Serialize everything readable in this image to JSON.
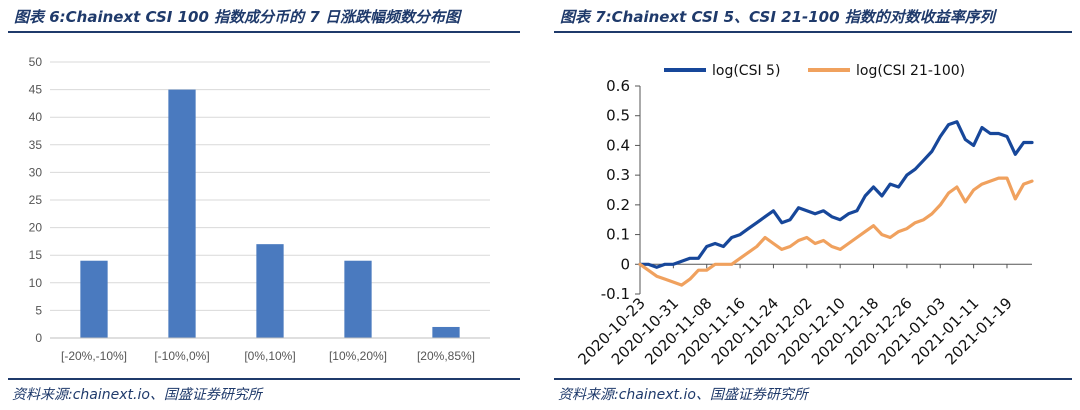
{
  "left_panel": {
    "title": "图表 6:Chainext CSI 100 指数成分币的 7 日涨跌幅频数分布图",
    "source": "资料来源:chainext.io、国盛证券研究所"
  },
  "right_panel": {
    "title": "图表 7:Chainext CSI 5、CSI 21-100 指数的对数收益率序列",
    "source": "资料来源:chainext.io、国盛证券研究所"
  },
  "chart_data": [
    {
      "type": "bar",
      "categories": [
        "[-20%,-10%]",
        "[-10%,0%]",
        "[0%,10%]",
        "[10%,20%]",
        "[20%,85%]"
      ],
      "values": [
        14,
        45,
        17,
        14,
        2
      ],
      "ylim": [
        0,
        50
      ],
      "yticks": [
        "0",
        "5",
        "10",
        "15",
        "20",
        "25",
        "30",
        "35",
        "40",
        "45",
        "50"
      ],
      "grid": true,
      "bar_color": "#4a7abf"
    },
    {
      "type": "line",
      "legend_position": "top",
      "ylim": [
        -0.1,
        0.6
      ],
      "yticks": [
        "-0.1",
        "0",
        "0.1",
        "0.2",
        "0.3",
        "0.4",
        "0.5",
        "0.6"
      ],
      "xticks": [
        "2020-10-23",
        "2020-10-31",
        "2020-11-08",
        "2020-11-16",
        "2020-11-24",
        "2020-12-02",
        "2020-12-10",
        "2020-12-18",
        "2020-12-26",
        "2021-01-03",
        "2021-01-11",
        "2021-01-19"
      ],
      "xrange": [
        "2020-10-23",
        "2021-01-25"
      ],
      "series": [
        {
          "name": "log(CSI 5)",
          "color": "#17479a",
          "points": [
            [
              "2020-10-23",
              0.0
            ],
            [
              "2020-10-25",
              0.0
            ],
            [
              "2020-10-27",
              -0.01
            ],
            [
              "2020-10-29",
              0.0
            ],
            [
              "2020-10-31",
              0.0
            ],
            [
              "2020-11-02",
              0.01
            ],
            [
              "2020-11-04",
              0.02
            ],
            [
              "2020-11-06",
              0.02
            ],
            [
              "2020-11-08",
              0.06
            ],
            [
              "2020-11-10",
              0.07
            ],
            [
              "2020-11-12",
              0.06
            ],
            [
              "2020-11-14",
              0.09
            ],
            [
              "2020-11-16",
              0.1
            ],
            [
              "2020-11-18",
              0.12
            ],
            [
              "2020-11-20",
              0.14
            ],
            [
              "2020-11-22",
              0.16
            ],
            [
              "2020-11-24",
              0.18
            ],
            [
              "2020-11-26",
              0.14
            ],
            [
              "2020-11-28",
              0.15
            ],
            [
              "2020-11-30",
              0.19
            ],
            [
              "2020-12-02",
              0.18
            ],
            [
              "2020-12-04",
              0.17
            ],
            [
              "2020-12-06",
              0.18
            ],
            [
              "2020-12-08",
              0.16
            ],
            [
              "2020-12-10",
              0.15
            ],
            [
              "2020-12-12",
              0.17
            ],
            [
              "2020-12-14",
              0.18
            ],
            [
              "2020-12-16",
              0.23
            ],
            [
              "2020-12-18",
              0.26
            ],
            [
              "2020-12-20",
              0.23
            ],
            [
              "2020-12-22",
              0.27
            ],
            [
              "2020-12-24",
              0.26
            ],
            [
              "2020-12-26",
              0.3
            ],
            [
              "2020-12-28",
              0.32
            ],
            [
              "2020-12-30",
              0.35
            ],
            [
              "2021-01-01",
              0.38
            ],
            [
              "2021-01-03",
              0.43
            ],
            [
              "2021-01-05",
              0.47
            ],
            [
              "2021-01-07",
              0.48
            ],
            [
              "2021-01-09",
              0.42
            ],
            [
              "2021-01-11",
              0.4
            ],
            [
              "2021-01-13",
              0.46
            ],
            [
              "2021-01-15",
              0.44
            ],
            [
              "2021-01-17",
              0.44
            ],
            [
              "2021-01-19",
              0.43
            ],
            [
              "2021-01-21",
              0.37
            ],
            [
              "2021-01-23",
              0.41
            ],
            [
              "2021-01-25",
              0.41
            ]
          ]
        },
        {
          "name": "log(CSI 21-100)",
          "color": "#f0a15e",
          "points": [
            [
              "2020-10-23",
              0.0
            ],
            [
              "2020-10-25",
              -0.02
            ],
            [
              "2020-10-27",
              -0.04
            ],
            [
              "2020-10-29",
              -0.05
            ],
            [
              "2020-10-31",
              -0.06
            ],
            [
              "2020-11-02",
              -0.07
            ],
            [
              "2020-11-04",
              -0.05
            ],
            [
              "2020-11-06",
              -0.02
            ],
            [
              "2020-11-08",
              -0.02
            ],
            [
              "2020-11-10",
              0.0
            ],
            [
              "2020-11-12",
              0.0
            ],
            [
              "2020-11-14",
              0.0
            ],
            [
              "2020-11-16",
              0.02
            ],
            [
              "2020-11-18",
              0.04
            ],
            [
              "2020-11-20",
              0.06
            ],
            [
              "2020-11-22",
              0.09
            ],
            [
              "2020-11-24",
              0.07
            ],
            [
              "2020-11-26",
              0.05
            ],
            [
              "2020-11-28",
              0.06
            ],
            [
              "2020-11-30",
              0.08
            ],
            [
              "2020-12-02",
              0.09
            ],
            [
              "2020-12-04",
              0.07
            ],
            [
              "2020-12-06",
              0.08
            ],
            [
              "2020-12-08",
              0.06
            ],
            [
              "2020-12-10",
              0.05
            ],
            [
              "2020-12-12",
              0.07
            ],
            [
              "2020-12-14",
              0.09
            ],
            [
              "2020-12-16",
              0.11
            ],
            [
              "2020-12-18",
              0.13
            ],
            [
              "2020-12-20",
              0.1
            ],
            [
              "2020-12-22",
              0.09
            ],
            [
              "2020-12-24",
              0.11
            ],
            [
              "2020-12-26",
              0.12
            ],
            [
              "2020-12-28",
              0.14
            ],
            [
              "2020-12-30",
              0.15
            ],
            [
              "2021-01-01",
              0.17
            ],
            [
              "2021-01-03",
              0.2
            ],
            [
              "2021-01-05",
              0.24
            ],
            [
              "2021-01-07",
              0.26
            ],
            [
              "2021-01-09",
              0.21
            ],
            [
              "2021-01-11",
              0.25
            ],
            [
              "2021-01-13",
              0.27
            ],
            [
              "2021-01-15",
              0.28
            ],
            [
              "2021-01-17",
              0.29
            ],
            [
              "2021-01-19",
              0.29
            ],
            [
              "2021-01-21",
              0.22
            ],
            [
              "2021-01-23",
              0.27
            ],
            [
              "2021-01-25",
              0.28
            ]
          ]
        }
      ]
    }
  ]
}
